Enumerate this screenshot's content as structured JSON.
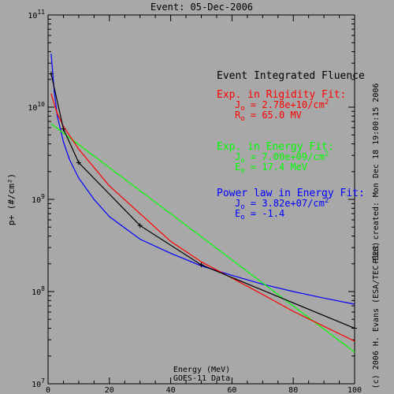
{
  "chart_data": {
    "type": "line",
    "title": "Event: 05-Dec-2006",
    "xlabel": "Energy (MeV)",
    "xlabel2": "GOES-11 Data",
    "ylabel": "p+ (#/cm²)",
    "xlim": [
      0,
      100
    ],
    "ylim": [
      10000000,
      100000000000
    ],
    "yscale": "log",
    "xticks": [
      "0",
      "20",
      "40",
      "60",
      "80",
      "100"
    ],
    "yticks": [
      {
        "value": 10000000,
        "base": "10",
        "exp": "7"
      },
      {
        "value": 100000000,
        "base": "10",
        "exp": "8"
      },
      {
        "value": 1000000000,
        "base": "10",
        "exp": "9"
      },
      {
        "value": 10000000000,
        "base": "10",
        "exp": "10"
      },
      {
        "value": 100000000000,
        "base": "10",
        "exp": "11"
      }
    ],
    "grid": false,
    "series": [
      {
        "color": "#000000",
        "markers": true,
        "x": [
          1,
          5,
          10,
          30,
          50,
          100
        ],
        "y": [
          23000000000,
          5800000000,
          2500000000,
          520000000,
          195000000,
          40000000
        ]
      },
      {
        "color": "#ff0000",
        "markers": false,
        "x": [
          1,
          3,
          5,
          10,
          20,
          30,
          40,
          50,
          60,
          70,
          80,
          90,
          100
        ],
        "y": [
          14000000000,
          8500000000,
          6200000000,
          3500000000,
          1400000000,
          700000000,
          350000000,
          210000000,
          140000000,
          93000000,
          61000000,
          42000000,
          29000000
        ]
      },
      {
        "color": "#00ff00",
        "markers": false,
        "x": [
          1,
          100
        ],
        "y": [
          6600000000,
          22000000
        ]
      },
      {
        "color": "#0000ff",
        "markers": false,
        "x": [
          1,
          2,
          3,
          5,
          7,
          10,
          15,
          20,
          30,
          40,
          50,
          60,
          70,
          80,
          90,
          100
        ],
        "y": [
          38000000000,
          15000000000,
          8000000000,
          4200000000,
          2700000000,
          1700000000,
          1000000000,
          650000000,
          370000000,
          260000000,
          190000000,
          150000000,
          120000000,
          100000000,
          85000000,
          73000000
        ]
      }
    ],
    "legend_title": "Event Integrated Fluence",
    "fits": [
      {
        "color": "#ff0000",
        "name": "Exp. in Rigidity Fit:",
        "l1_sym": "J",
        "l1_sub": "o",
        "l1_rest": " = 2.78e+10/cm",
        "l1_sup": "2",
        "l2_sym": "R",
        "l2_sub": "o",
        "l2_rest": " =  65.0 MV"
      },
      {
        "color": "#00ff00",
        "name": "Exp. in Energy Fit:",
        "l1_sym": "J",
        "l1_sub": "o",
        "l1_rest": " = 7.00e+09/cm",
        "l1_sup": "2",
        "l2_sym": "E",
        "l2_sub": "o",
        "l2_rest": " =  17.4 MeV"
      },
      {
        "color": "#0000ff",
        "name": "Power law in Energy Fit:",
        "l1_sym": "J",
        "l1_sub": "o",
        "l1_rest": " = 3.82e+07/cm",
        "l1_sup": "2",
        "l2_sym": "E",
        "l2_sub": "o",
        "l2_rest": " =  -1.4"
      }
    ],
    "plot_created": "Plot created: Mon Dec 18 19:00:15 2006",
    "copyright": "(c) 2006 H. Evans (ESA/TEC-EES)"
  }
}
